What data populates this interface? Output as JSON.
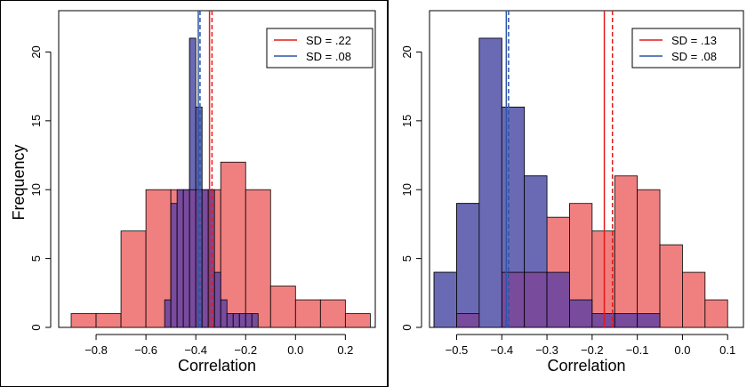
{
  "colors": {
    "red_fill": "#f08080",
    "blue_fill": "#6a6ab4",
    "overlap_fill": "#6a45a0",
    "red_line": "#e31a1c",
    "blue_line": "#2b55a8"
  },
  "shared": {
    "ylabel": "Frequency"
  },
  "chart_data": [
    {
      "type": "histogram",
      "xlabel": "Correlation",
      "ylabel": "Frequency",
      "xlim": [
        -0.95,
        0.32
      ],
      "ylim": [
        0,
        23
      ],
      "xticks": [
        -0.8,
        -0.6,
        -0.4,
        -0.2,
        0.0,
        0.2
      ],
      "xtick_labels": [
        "−0.8",
        "−0.6",
        "−0.4",
        "−0.2",
        "0.0",
        "0.2"
      ],
      "yticks": [
        0,
        5,
        10,
        15,
        20
      ],
      "ytick_labels": [
        "0",
        "5",
        "10",
        "15",
        "20"
      ],
      "legend_position": "top-right",
      "legend": [
        {
          "label": "SD = .22",
          "color": "#e31a1c"
        },
        {
          "label": "SD = .08",
          "color": "#2b55a8"
        }
      ],
      "series": [
        {
          "color": "#f08080",
          "bin_width": 0.1,
          "bins": [
            {
              "x0": -0.9,
              "count": 1
            },
            {
              "x0": -0.8,
              "count": 1
            },
            {
              "x0": -0.7,
              "count": 7
            },
            {
              "x0": -0.6,
              "count": 10
            },
            {
              "x0": -0.5,
              "count": 10
            },
            {
              "x0": -0.4,
              "count": 10
            },
            {
              "x0": -0.3,
              "count": 12
            },
            {
              "x0": -0.2,
              "count": 10
            },
            {
              "x0": -0.1,
              "count": 3
            },
            {
              "x0": 0.0,
              "count": 2
            },
            {
              "x0": 0.1,
              "count": 2
            },
            {
              "x0": 0.2,
              "count": 1
            }
          ],
          "mean_line": -0.345,
          "median_line": -0.335
        },
        {
          "color": "#6a6ab4",
          "bin_width": 0.025,
          "bins": [
            {
              "x0": -0.525,
              "count": 2
            },
            {
              "x0": -0.5,
              "count": 9
            },
            {
              "x0": -0.475,
              "count": 10
            },
            {
              "x0": -0.45,
              "count": 10
            },
            {
              "x0": -0.425,
              "count": 21
            },
            {
              "x0": -0.4,
              "count": 16
            },
            {
              "x0": -0.375,
              "count": 10
            },
            {
              "x0": -0.35,
              "count": 10
            },
            {
              "x0": -0.325,
              "count": 4
            },
            {
              "x0": -0.3,
              "count": 2
            },
            {
              "x0": -0.275,
              "count": 1
            },
            {
              "x0": -0.25,
              "count": 1
            },
            {
              "x0": -0.225,
              "count": 1
            },
            {
              "x0": -0.2,
              "count": 1
            },
            {
              "x0": -0.175,
              "count": 1
            }
          ],
          "mean_line": -0.39,
          "median_line": -0.383
        }
      ]
    },
    {
      "type": "histogram",
      "xlabel": "Correlation",
      "ylabel": "",
      "xlim": [
        -0.56,
        0.135
      ],
      "ylim": [
        0,
        23
      ],
      "xticks": [
        -0.5,
        -0.4,
        -0.3,
        -0.2,
        -0.1,
        0.0,
        0.1
      ],
      "xtick_labels": [
        "−0.5",
        "−0.4",
        "−0.3",
        "−0.2",
        "−0.1",
        "0.0",
        "0.1"
      ],
      "yticks": [
        0,
        5,
        10,
        15,
        20
      ],
      "ytick_labels": [
        "0",
        "5",
        "10",
        "15",
        "20"
      ],
      "legend_position": "top-right",
      "legend": [
        {
          "label": "SD = .13",
          "color": "#e31a1c"
        },
        {
          "label": "SD = .08",
          "color": "#2b55a8"
        }
      ],
      "series": [
        {
          "color": "#f08080",
          "bin_width": 0.05,
          "bins": [
            {
              "x0": -0.5,
              "count": 1
            },
            {
              "x0": -0.45,
              "count": 0
            },
            {
              "x0": -0.4,
              "count": 4
            },
            {
              "x0": -0.35,
              "count": 4
            },
            {
              "x0": -0.3,
              "count": 8
            },
            {
              "x0": -0.25,
              "count": 9
            },
            {
              "x0": -0.2,
              "count": 7
            },
            {
              "x0": -0.15,
              "count": 11
            },
            {
              "x0": -0.1,
              "count": 10
            },
            {
              "x0": -0.05,
              "count": 6
            },
            {
              "x0": 0.0,
              "count": 4
            },
            {
              "x0": 0.05,
              "count": 2
            }
          ],
          "mean_line": -0.173,
          "median_line": -0.155
        },
        {
          "color": "#6a6ab4",
          "bin_width": 0.05,
          "bins": [
            {
              "x0": -0.55,
              "count": 4
            },
            {
              "x0": -0.5,
              "count": 9
            },
            {
              "x0": -0.45,
              "count": 21
            },
            {
              "x0": -0.4,
              "count": 16
            },
            {
              "x0": -0.35,
              "count": 11
            },
            {
              "x0": -0.3,
              "count": 4
            },
            {
              "x0": -0.25,
              "count": 2
            },
            {
              "x0": -0.2,
              "count": 1
            },
            {
              "x0": -0.15,
              "count": 1
            },
            {
              "x0": -0.1,
              "count": 1
            }
          ],
          "mean_line": -0.39,
          "median_line": -0.385
        }
      ]
    }
  ]
}
